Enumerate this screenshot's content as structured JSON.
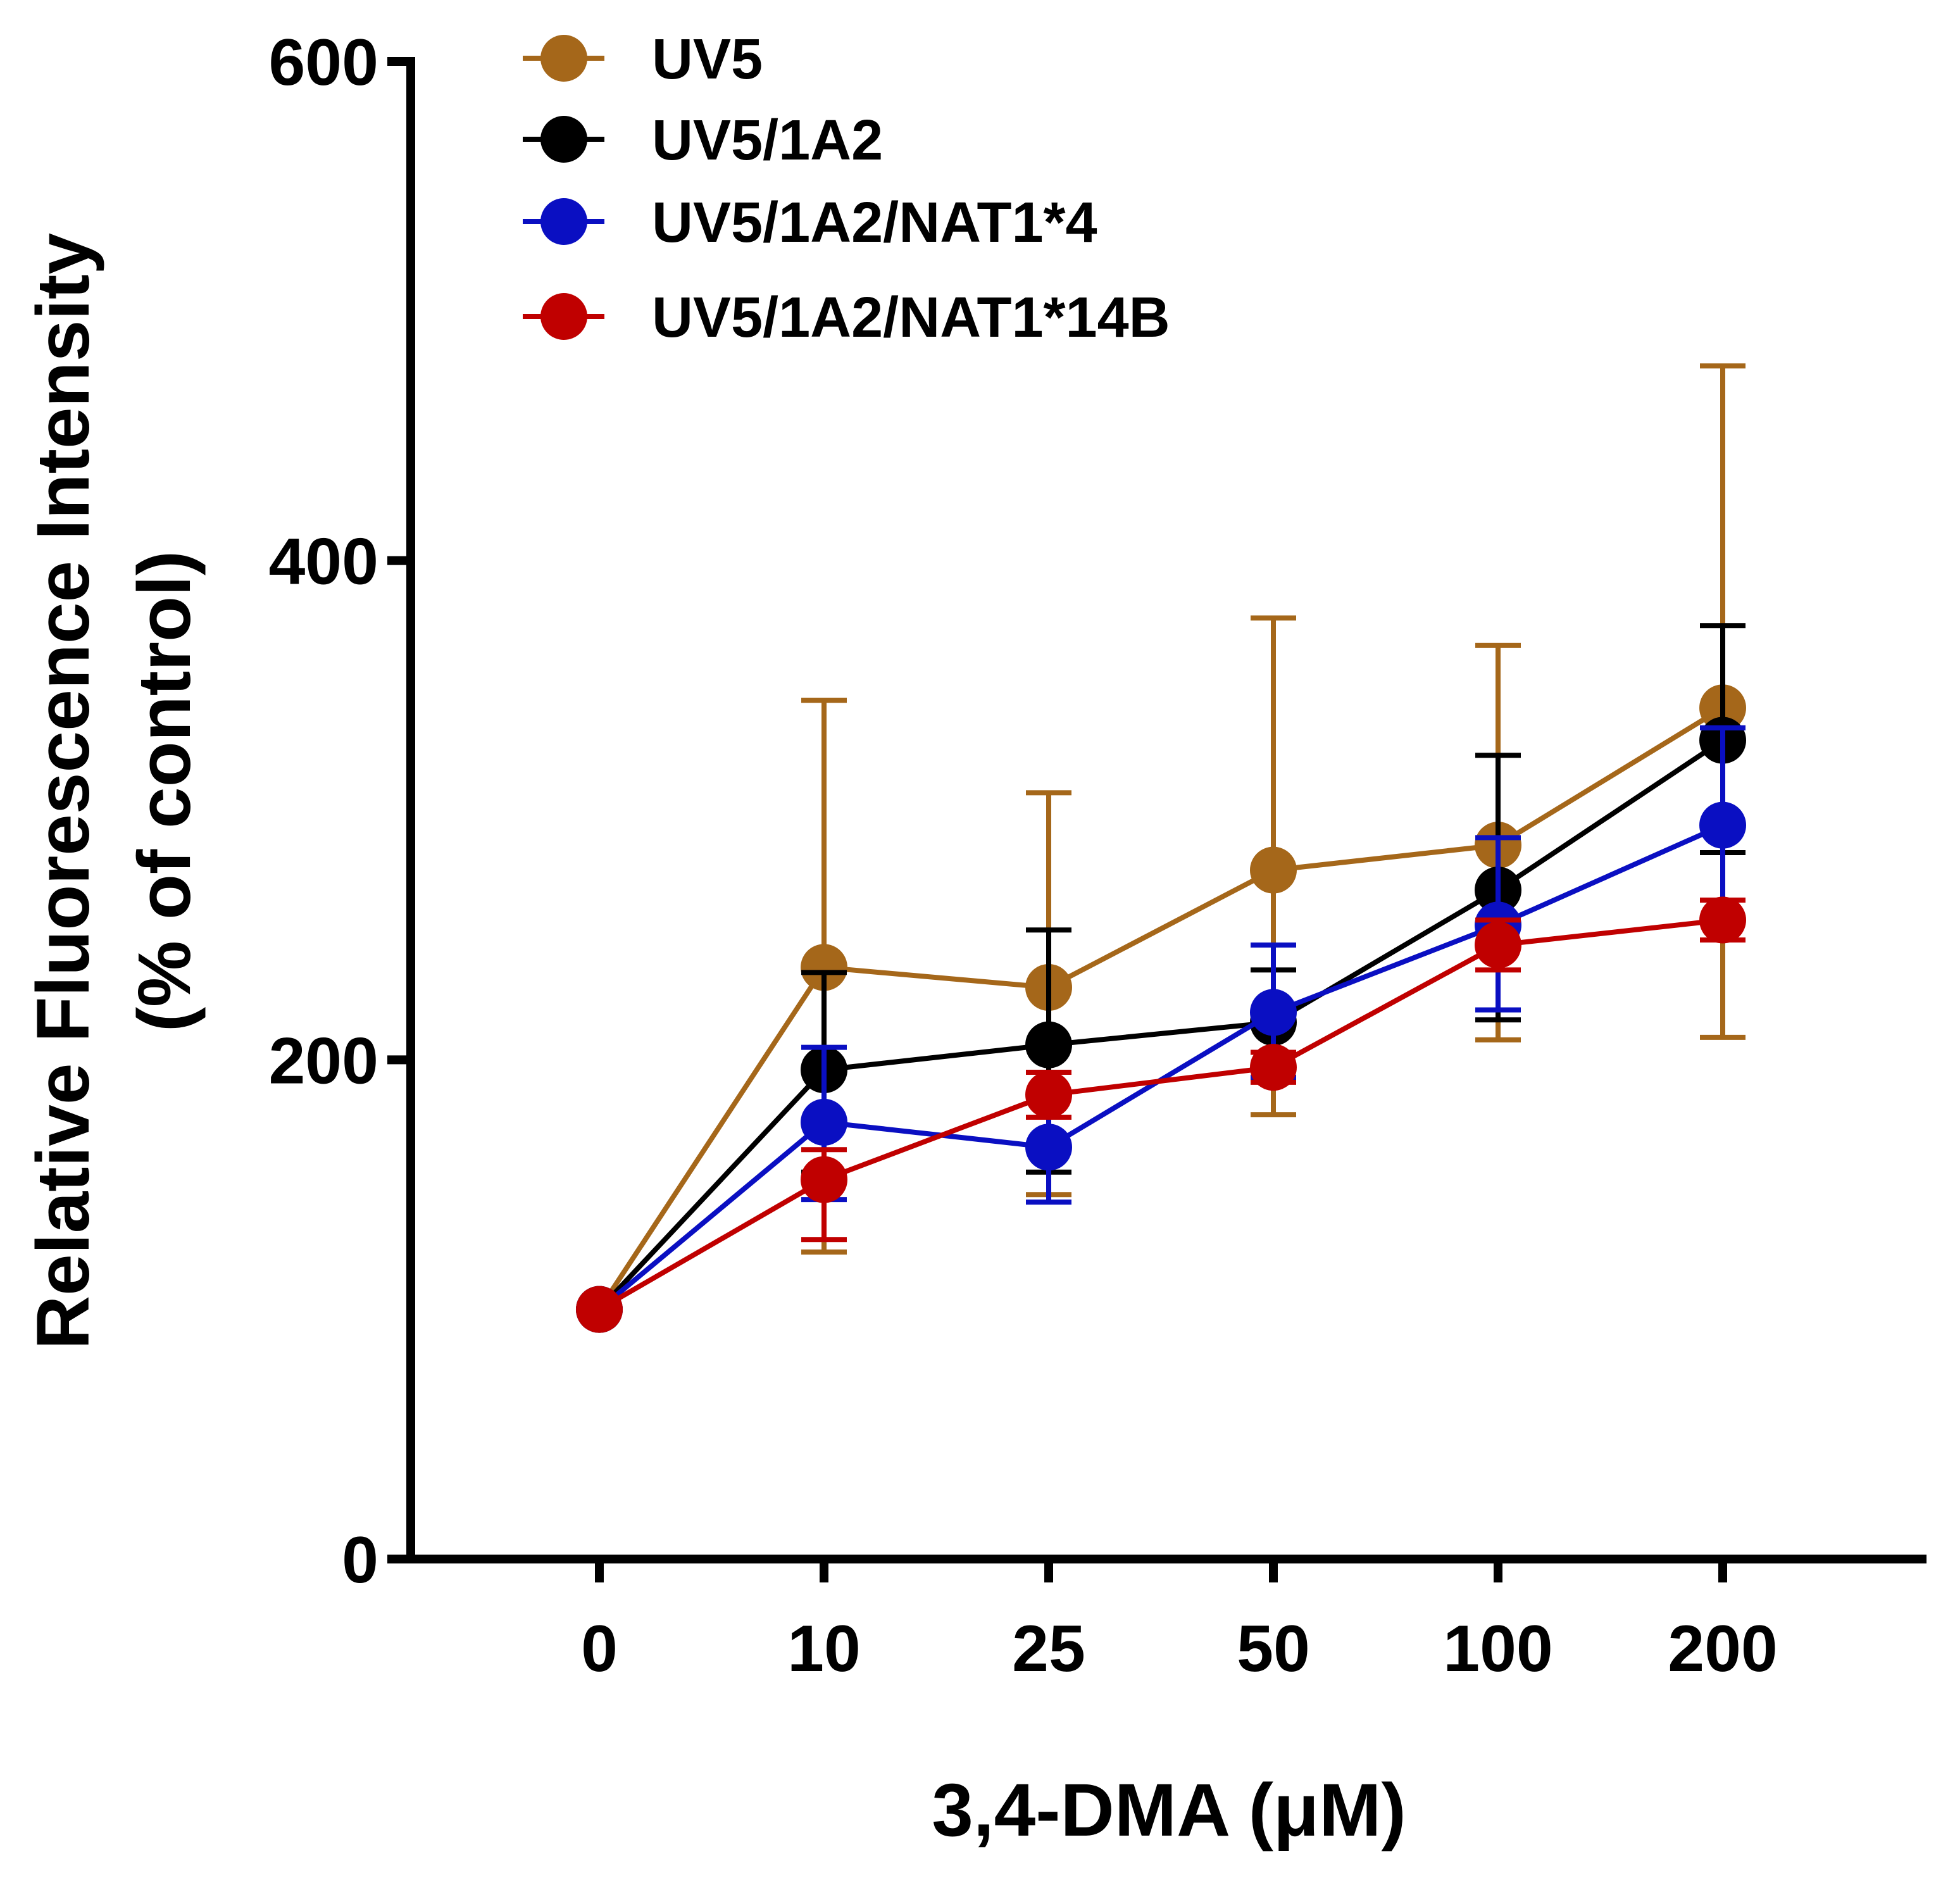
{
  "chart_data": {
    "type": "line",
    "title": "",
    "xlabel": "3,4-DMA (μM)",
    "ylabel_line1": "Relative Fluorescence Intensity",
    "ylabel_line2": "(% of control)",
    "categories": [
      "0",
      "10",
      "25",
      "50",
      "100",
      "200"
    ],
    "ylim": [
      0,
      600
    ],
    "yticks": [
      "0",
      "200",
      "400",
      "600"
    ],
    "ytick_values": [
      0,
      200,
      400,
      600
    ],
    "grid": false,
    "legend_position": "top-left",
    "series": [
      {
        "name": "UV5",
        "color": "#A5671A",
        "values": [
          100,
          237,
          229,
          276,
          286,
          341
        ],
        "err_low": [
          null,
          123,
          146,
          178,
          208,
          209
        ],
        "err_high": [
          null,
          344,
          307,
          377,
          366,
          478
        ]
      },
      {
        "name": "UV5/1A2",
        "color": "#000000",
        "values": [
          100,
          196,
          206,
          215,
          268,
          328
        ],
        "err_low": [
          null,
          155,
          155,
          192,
          216,
          283
        ],
        "err_high": [
          null,
          235,
          252,
          236,
          322,
          374
        ]
      },
      {
        "name": "UV5/1A2/NAT1*4",
        "color": "#0A0FC2",
        "values": [
          100,
          175,
          165,
          219,
          254,
          294
        ],
        "err_low": [
          null,
          144,
          143,
          193,
          220,
          255
        ],
        "err_high": [
          null,
          205,
          187,
          246,
          289,
          333
        ]
      },
      {
        "name": "UV5/1A2/NAT1*14B",
        "color": "#C00000",
        "values": [
          100,
          152,
          186,
          197,
          246,
          256
        ],
        "err_low": [
          null,
          128,
          177,
          191,
          236,
          248
        ],
        "err_high": [
          null,
          164,
          195,
          203,
          256,
          264
        ]
      }
    ]
  }
}
